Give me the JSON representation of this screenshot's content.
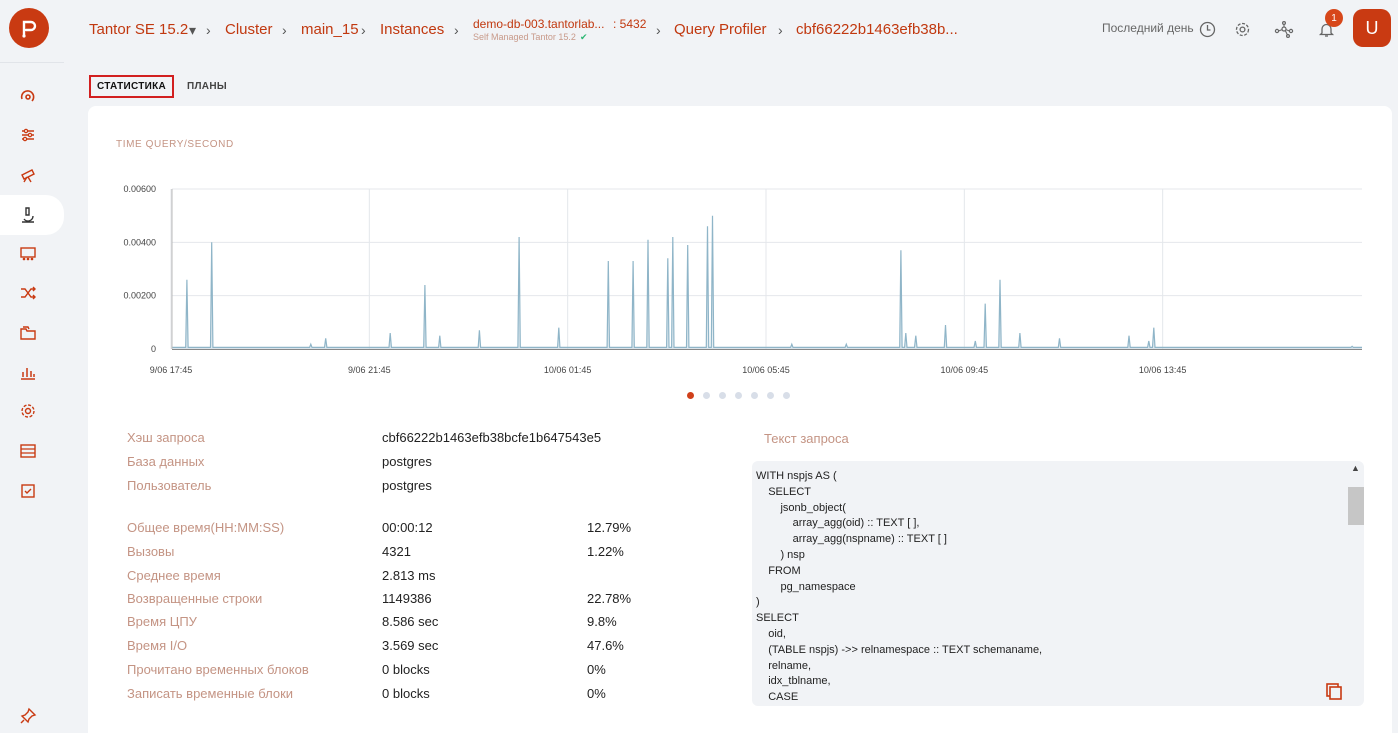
{
  "header": {
    "product": "Tantor SE 15.2",
    "breadcrumbs": [
      "Cluster",
      "main_15",
      "Instances"
    ],
    "instance_host": "demo-db-003.tantorlab...",
    "instance_port": ": 5432",
    "instance_sub": "Self Managed Tantor 15.2",
    "profiler": "Query Profiler",
    "query_id": "cbf66222b1463efb38b...",
    "period": "Последний день",
    "notifications_count": "1",
    "avatar_letter": "U"
  },
  "tabs": [
    {
      "label": "СТАТИСТИКА",
      "active": true
    },
    {
      "label": "ПЛАНЫ",
      "active": false
    }
  ],
  "chart_data": {
    "type": "line",
    "title": "TIME QUERY/SECOND",
    "xlabel": "",
    "ylabel": "",
    "ylim": [
      0,
      0.006
    ],
    "yticks": [
      "0.00600",
      "0.00400",
      "0.00200",
      "0"
    ],
    "xticks": [
      "9/06 17:45",
      "9/06 21:45",
      "10/06 01:45",
      "10/06 05:45",
      "10/06 09:45",
      "10/06 13:45"
    ],
    "x_unit_minutes": 5,
    "baseline": 6e-05,
    "spikes": [
      {
        "x": 3,
        "y": 0.0026
      },
      {
        "x": 8,
        "y": 0.004
      },
      {
        "x": 28,
        "y": 0.00018
      },
      {
        "x": 31,
        "y": 0.0004
      },
      {
        "x": 44,
        "y": 0.0006
      },
      {
        "x": 51,
        "y": 0.0024
      },
      {
        "x": 54,
        "y": 0.0005
      },
      {
        "x": 62,
        "y": 0.0007
      },
      {
        "x": 70,
        "y": 0.0042
      },
      {
        "x": 78,
        "y": 0.0008
      },
      {
        "x": 88,
        "y": 0.0033
      },
      {
        "x": 93,
        "y": 0.0033
      },
      {
        "x": 96,
        "y": 0.0041
      },
      {
        "x": 100,
        "y": 0.0034
      },
      {
        "x": 101,
        "y": 0.0042
      },
      {
        "x": 104,
        "y": 0.0039
      },
      {
        "x": 108,
        "y": 0.0046
      },
      {
        "x": 109,
        "y": 0.005
      },
      {
        "x": 125,
        "y": 0.00018
      },
      {
        "x": 136,
        "y": 0.00018
      },
      {
        "x": 147,
        "y": 0.0037
      },
      {
        "x": 148,
        "y": 0.0006
      },
      {
        "x": 150,
        "y": 0.0005
      },
      {
        "x": 156,
        "y": 0.0009
      },
      {
        "x": 162,
        "y": 0.0003
      },
      {
        "x": 164,
        "y": 0.0017
      },
      {
        "x": 167,
        "y": 0.0026
      },
      {
        "x": 171,
        "y": 0.0006
      },
      {
        "x": 179,
        "y": 0.0004
      },
      {
        "x": 193,
        "y": 0.0005
      },
      {
        "x": 197,
        "y": 0.0003
      },
      {
        "x": 198,
        "y": 0.0008
      },
      {
        "x": 238,
        "y": 0.0001
      }
    ],
    "x_count": 240,
    "series_color": "#8fb5c8",
    "grid": true
  },
  "stats_top": [
    {
      "label": "Хэш запроса",
      "value": "cbf66222b1463efb38bcfe1b647543e5"
    },
    {
      "label": "База данных",
      "value": "postgres"
    },
    {
      "label": "Пользователь",
      "value": "postgres"
    }
  ],
  "stats": [
    {
      "label": "Общее время(HH:MM:SS)",
      "value": "00:00:12",
      "pct": "12.79%"
    },
    {
      "label": "Вызовы",
      "value": "4321",
      "pct": "1.22%"
    },
    {
      "label": "Среднее время",
      "value": "2.813 ms",
      "pct": ""
    },
    {
      "label": "Возвращенные строки",
      "value": "1149386",
      "pct": "22.78%"
    },
    {
      "label": "Время ЦПУ",
      "value": "8.586 sec",
      "pct": "9.8%"
    },
    {
      "label": "Время I/O",
      "value": "3.569 sec",
      "pct": "47.6%"
    },
    {
      "label": "Прочитано временных блоков",
      "value": "0 blocks",
      "pct": "0%"
    },
    {
      "label": "Записать временные блоки",
      "value": "0 blocks",
      "pct": "0%"
    }
  ],
  "query": {
    "title": "Текст запроса",
    "text": "WITH nspjs AS (\n    SELECT\n        jsonb_object(\n            array_agg(oid) :: TEXT [ ],\n            array_agg(nspname) :: TEXT [ ]\n        ) nsp\n    FROM\n        pg_namespace\n)\nSELECT\n    oid,\n    (TABLE nspjs) ->> relnamespace :: TEXT schemaname,\n    relname,\n    idx_tblname,\n    CASE"
  },
  "colors": {
    "accent": "#c1380f",
    "label": "#c49484",
    "badge": "#d7471a"
  }
}
